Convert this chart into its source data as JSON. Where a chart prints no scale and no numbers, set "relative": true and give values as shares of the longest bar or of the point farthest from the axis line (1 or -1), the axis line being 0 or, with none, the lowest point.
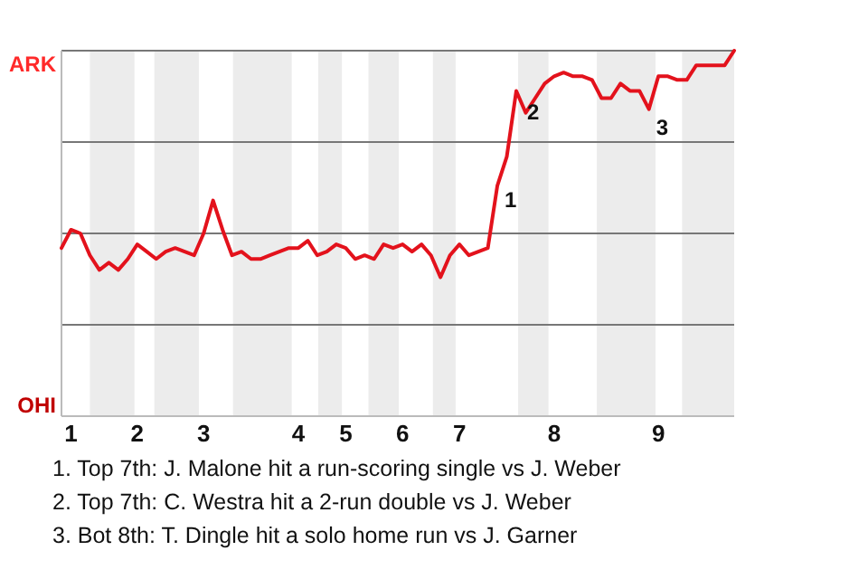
{
  "chart_data": {
    "type": "line",
    "relative": true,
    "categories": [
      null,
      "1",
      null,
      null,
      null,
      null,
      null,
      null,
      "2",
      null,
      null,
      null,
      null,
      null,
      null,
      "3",
      null,
      null,
      null,
      null,
      null,
      null,
      null,
      null,
      null,
      "4",
      null,
      null,
      null,
      null,
      "5",
      null,
      null,
      null,
      null,
      null,
      "6",
      null,
      null,
      null,
      null,
      null,
      "7",
      null,
      null,
      null,
      null,
      null,
      null,
      null,
      null,
      null,
      "8",
      null,
      null,
      null,
      null,
      null,
      null,
      null,
      null,
      null,
      null,
      "9",
      null,
      null,
      null,
      null,
      null,
      null,
      null,
      null
    ],
    "grid": "y",
    "marker": "none",
    "line_style": "solid",
    "series": [
      {
        "color": "#e3121c",
        "values": [
          0.46,
          0.51,
          0.5,
          0.44,
          0.4,
          0.42,
          0.4,
          0.43,
          0.47,
          0.45,
          0.43,
          0.45,
          0.46,
          0.45,
          0.44,
          0.5,
          0.59,
          0.51,
          0.44,
          0.45,
          0.43,
          0.43,
          0.44,
          0.45,
          0.46,
          0.46,
          0.48,
          0.44,
          0.45,
          0.47,
          0.46,
          0.43,
          0.44,
          0.43,
          0.47,
          0.46,
          0.47,
          0.45,
          0.47,
          0.44,
          0.38,
          0.44,
          0.47,
          0.44,
          0.45,
          0.46,
          0.63,
          0.71,
          0.89,
          0.83,
          0.87,
          0.91,
          0.93,
          0.94,
          0.93,
          0.93,
          0.92,
          0.87,
          0.87,
          0.91,
          0.89,
          0.89,
          0.84,
          0.93,
          0.93,
          0.92,
          0.92,
          0.96,
          0.96,
          0.96,
          0.96,
          1.0
        ]
      }
    ],
    "annotations": [
      "ARK",
      "OHI",
      "1",
      "2",
      "3",
      "1. Top 7th: J. Malone hit a run-scoring single vs J. Weber",
      "2. Top 7th: C. Westra hit a 2-run double vs J. Weber",
      "3. Bot 8th: T. Dingle hit a solo home run vs J. Garner"
    ]
  }
}
